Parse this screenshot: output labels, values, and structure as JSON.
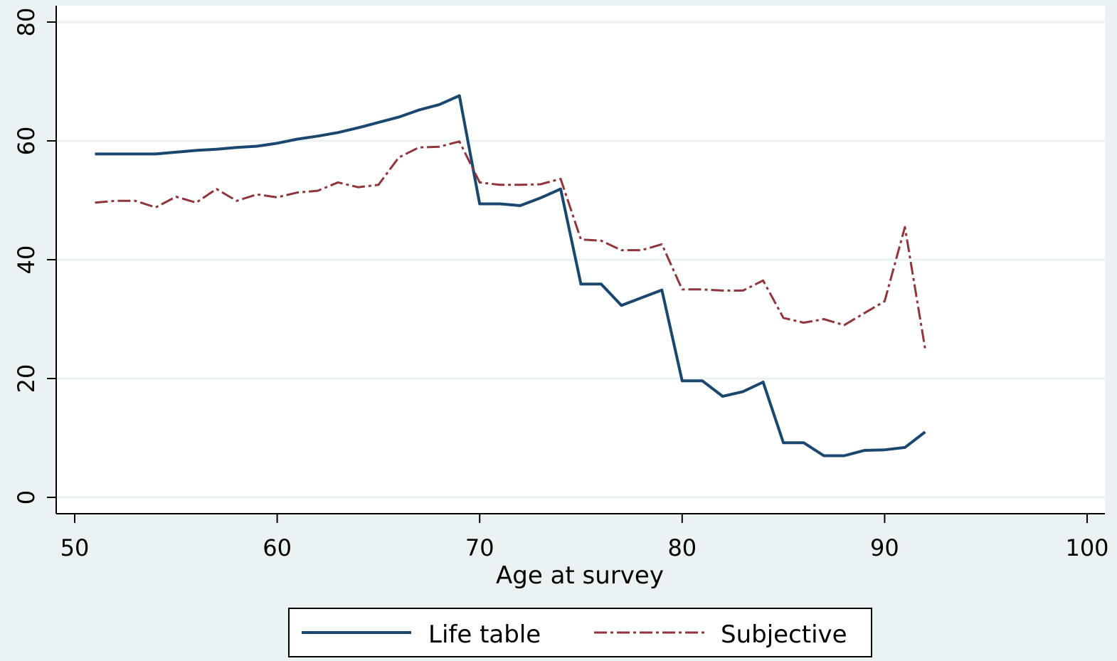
{
  "chart_data": {
    "type": "line",
    "title": "",
    "xlabel": "Age at survey",
    "ylabel": "",
    "xlim": [
      50,
      100
    ],
    "ylim": [
      0,
      80
    ],
    "xticks": [
      50,
      60,
      70,
      80,
      90,
      100
    ],
    "yticks": [
      0,
      20,
      40,
      60,
      80
    ],
    "grid": "horizontal",
    "legend_position": "bottom",
    "colors": {
      "plot_bg": "#ffffff",
      "page_bg": "#eaf2f3",
      "grid": "#eaf2f3"
    },
    "series": [
      {
        "name": "Life table",
        "color": "#1a476f",
        "style": "solid",
        "x": [
          51,
          52,
          53,
          54,
          55,
          56,
          57,
          58,
          59,
          60,
          61,
          62,
          63,
          64,
          65,
          66,
          67,
          68,
          69,
          70,
          71,
          72,
          73,
          74,
          75,
          76,
          77,
          78,
          79,
          80,
          81,
          82,
          83,
          84,
          85,
          86,
          87,
          88,
          89,
          90,
          91,
          92
        ],
        "y": [
          57.8,
          57.8,
          57.8,
          57.8,
          58.1,
          58.4,
          58.6,
          58.9,
          59.1,
          59.6,
          60.3,
          60.8,
          61.4,
          62.2,
          63.1,
          64.0,
          65.2,
          66.1,
          67.6,
          49.4,
          49.4,
          49.1,
          50.4,
          51.9,
          35.9,
          35.9,
          32.3,
          33.6,
          34.9,
          19.6,
          19.6,
          17.0,
          17.8,
          19.4,
          9.2,
          9.2,
          7.0,
          7.0,
          7.9,
          8.0,
          8.4,
          11.0
        ]
      },
      {
        "name": "Subjective",
        "color": "#90353b",
        "style": "dash-dot",
        "x": [
          51,
          52,
          53,
          54,
          55,
          56,
          57,
          58,
          59,
          60,
          61,
          62,
          63,
          64,
          65,
          66,
          67,
          68,
          69,
          70,
          71,
          72,
          73,
          74,
          75,
          76,
          77,
          78,
          79,
          80,
          81,
          82,
          83,
          84,
          85,
          86,
          87,
          88,
          89,
          90,
          91,
          92
        ],
        "y": [
          49.6,
          49.9,
          49.9,
          48.8,
          50.6,
          49.6,
          51.9,
          49.9,
          51.0,
          50.5,
          51.3,
          51.6,
          53.0,
          52.2,
          52.6,
          57.2,
          58.9,
          59.0,
          59.9,
          53.0,
          52.6,
          52.6,
          52.7,
          53.6,
          43.4,
          43.2,
          41.6,
          41.6,
          42.6,
          35.0,
          35.0,
          34.8,
          34.8,
          36.5,
          30.2,
          29.4,
          30.0,
          29.0,
          31.0,
          33.0,
          45.5,
          25.0
        ]
      }
    ]
  }
}
